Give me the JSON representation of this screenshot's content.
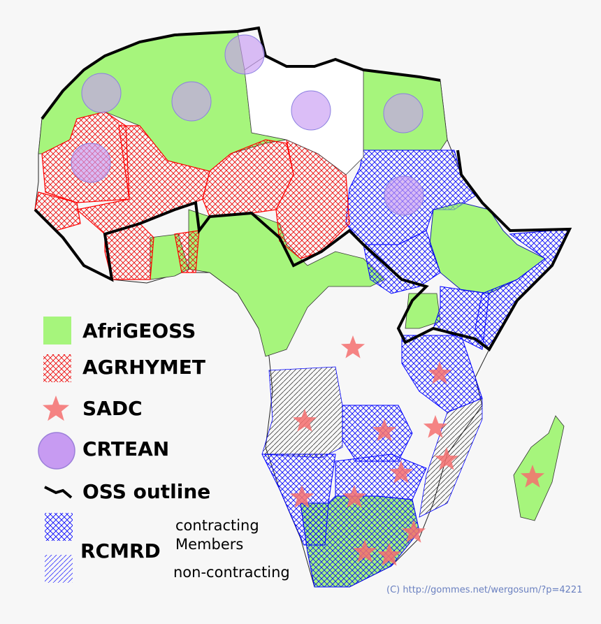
{
  "legend": {
    "afrigeoss": {
      "label": "AfriGEOSS",
      "color": "#a6f57c"
    },
    "agrhymet": {
      "label": "AGRHYMET",
      "color": "#ff0000"
    },
    "sadc": {
      "label": "SADC",
      "color": "#f56f6f"
    },
    "crtean": {
      "label": "CRTEAN",
      "color": "#c79bf2"
    },
    "oss": {
      "label": "OSS outline",
      "color": "#000000"
    },
    "rcmrd": {
      "label": "RCMRD",
      "color": "#0000ff",
      "contracting": "contracting",
      "members": "Members",
      "non_contracting": "non-contracting"
    }
  },
  "credit": "(C) http://gommes.net/wergosum/?p=4221"
}
